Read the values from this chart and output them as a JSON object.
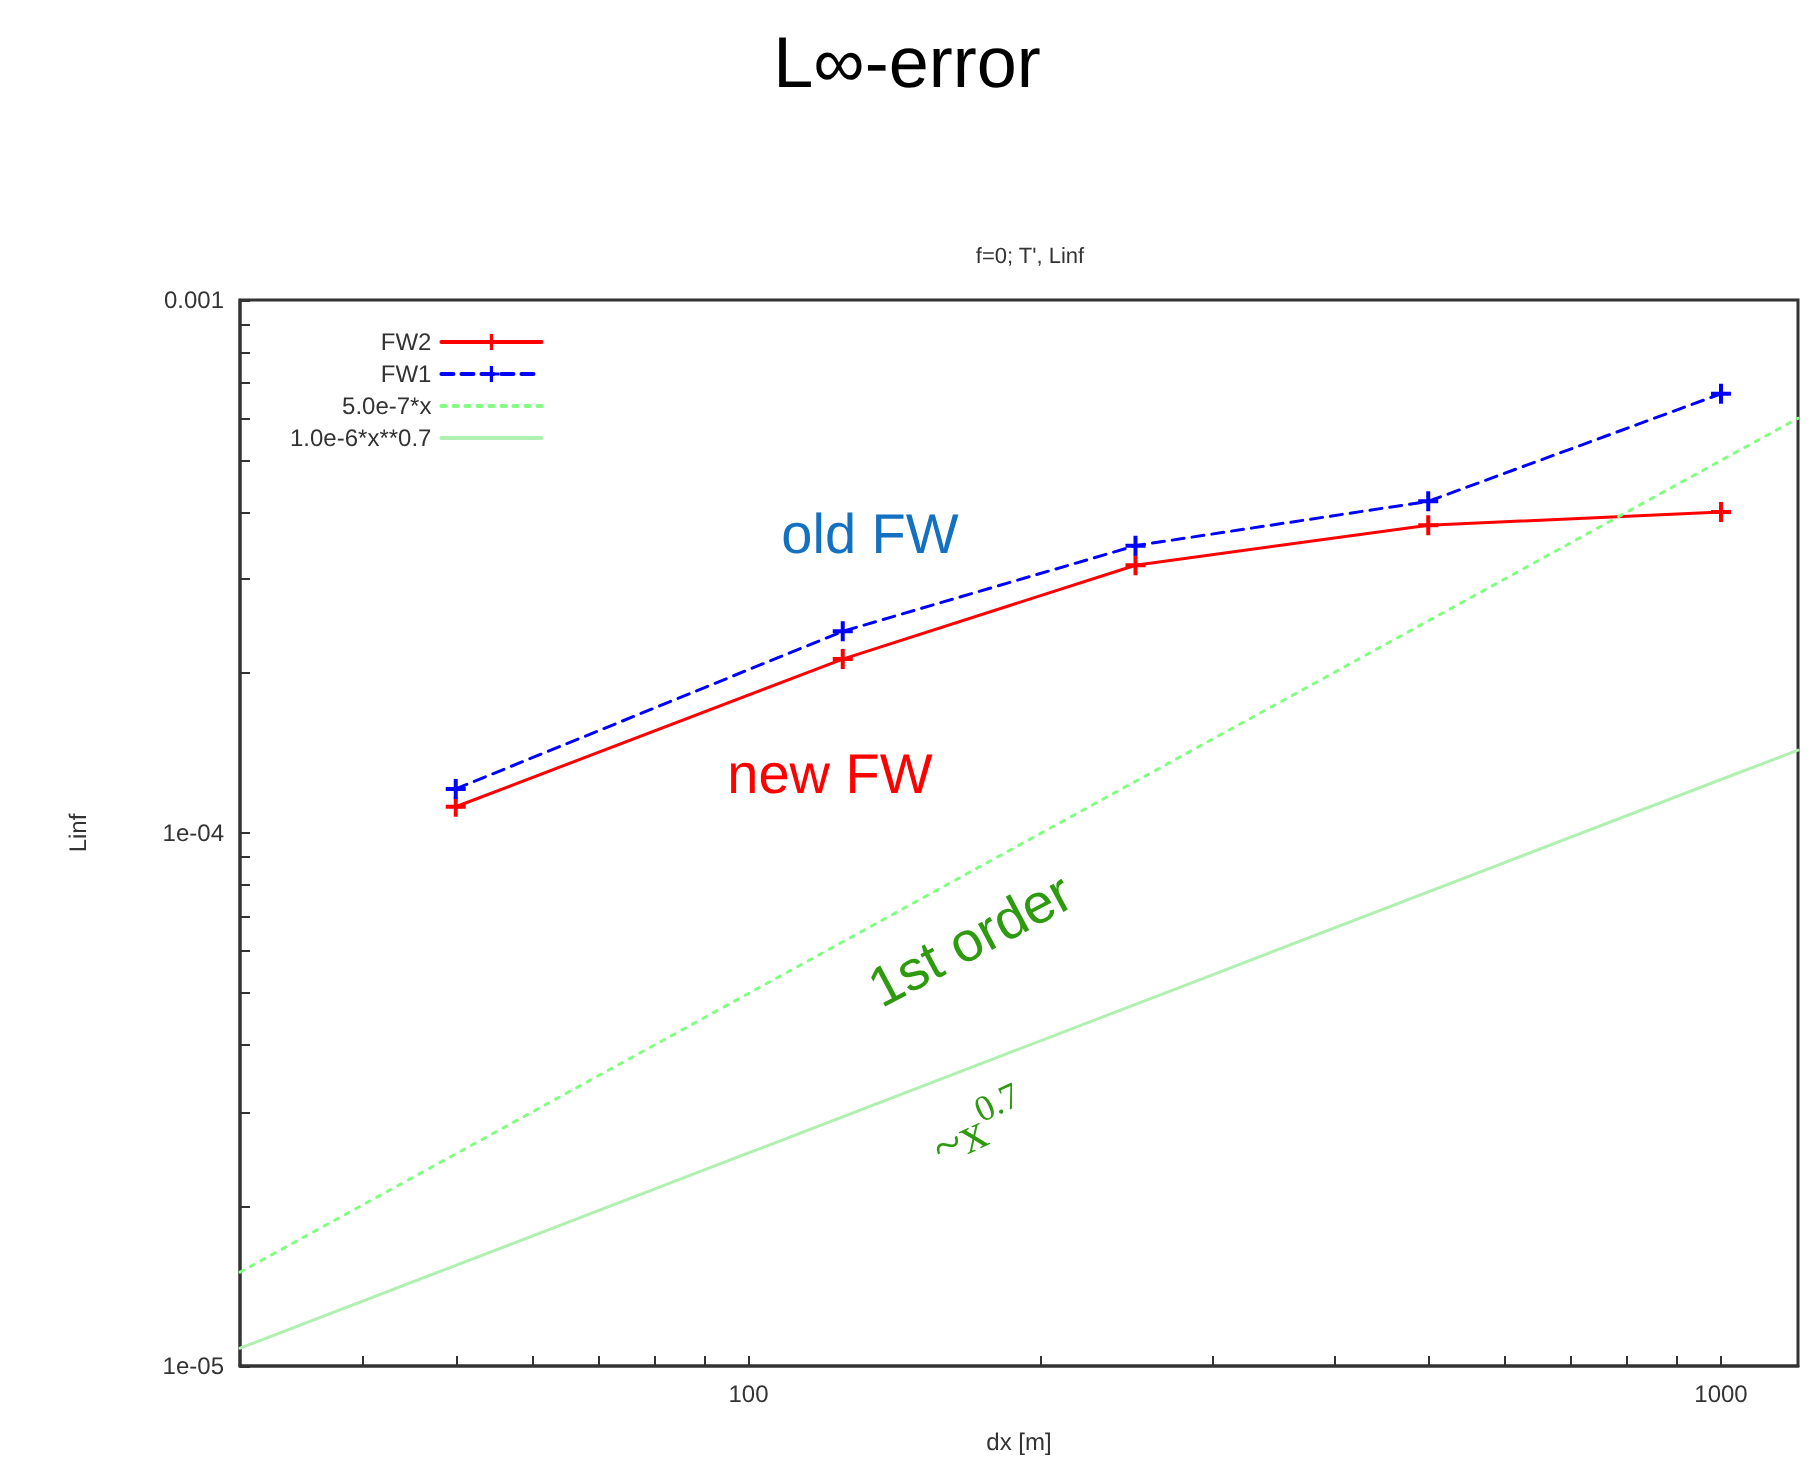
{
  "chart_data": {
    "type": "line",
    "title": "L∞-error",
    "subtitle": "f=0; T', Linf",
    "xlabel": "dx [m]",
    "ylabel": "Linf",
    "log": "xy",
    "xlim": [
      30,
      1200
    ],
    "ylim": [
      1e-05,
      0.001
    ],
    "xticks": [
      {
        "value": 40,
        "label": null
      },
      {
        "value": 50,
        "label": null
      },
      {
        "value": 60,
        "label": null
      },
      {
        "value": 70,
        "label": null
      },
      {
        "value": 80,
        "label": null
      },
      {
        "value": 90,
        "label": null
      },
      100,
      {
        "value": 200,
        "label": null
      },
      {
        "value": 300,
        "label": null
      },
      {
        "value": 400,
        "label": null
      },
      {
        "value": 500,
        "label": null
      },
      {
        "value": 600,
        "label": null
      },
      {
        "value": 700,
        "label": null
      },
      {
        "value": 800,
        "label": null
      },
      {
        "value": 900,
        "label": null
      },
      1000
    ],
    "yticks": [
      {
        "value": 1e-05,
        "label": "1e-05"
      },
      {
        "value": 2e-05,
        "label": null
      },
      {
        "value": 3e-05,
        "label": null
      },
      {
        "value": 4e-05,
        "label": null
      },
      {
        "value": 5e-05,
        "label": null
      },
      {
        "value": 6e-05,
        "label": null
      },
      {
        "value": 7e-05,
        "label": null
      },
      {
        "value": 8e-05,
        "label": null
      },
      {
        "value": 9e-05,
        "label": null
      },
      {
        "value": 0.0001,
        "label": "1e-04"
      },
      {
        "value": 0.0002,
        "label": null
      },
      {
        "value": 0.0003,
        "label": null
      },
      {
        "value": 0.0004,
        "label": null
      },
      {
        "value": 0.0005,
        "label": null
      },
      {
        "value": 0.0006,
        "label": null
      },
      {
        "value": 0.0007,
        "label": null
      },
      {
        "value": 0.0008,
        "label": null
      },
      {
        "value": 0.0009,
        "label": null
      },
      0.001
    ],
    "grid": false,
    "legend": "top left",
    "series": [
      {
        "name": "FW2",
        "color": "#ff0000",
        "marker": "cross",
        "line_style": "solid",
        "x": [
          50,
          125,
          250,
          500,
          1000
        ],
        "values": [
          0.000112,
          0.000212,
          0.000318,
          0.000378,
          0.0004
        ]
      },
      {
        "name": "FW1",
        "color": "#0000ff",
        "marker": "cross",
        "line_style": "dashed",
        "x": [
          50,
          125,
          250,
          500,
          1000
        ],
        "values": [
          0.000121,
          0.000239,
          0.000346,
          0.000419,
          0.000667
        ]
      },
      {
        "name": "5.0e-7*x",
        "color": "#80ff80",
        "marker": "none",
        "line_style": "dotted",
        "x": [
          30,
          100,
          300,
          1000,
          1200
        ],
        "values": [
          1.5e-05,
          5e-05,
          0.00015,
          0.0005,
          0.0006
        ]
      },
      {
        "name": "1.0e-6*x**0.7",
        "color": "#b0f0b0",
        "marker": "none",
        "line_style": "solid",
        "x": [
          30,
          100,
          300,
          1000,
          1200
        ],
        "values": [
          1.08e-05,
          2.51e-05,
          5.42e-05,
          0.000126,
          0.000143
        ]
      }
    ],
    "annotations": [
      "old FW",
      "new FW",
      "1st order",
      "~x$^{0.7}$"
    ]
  }
}
